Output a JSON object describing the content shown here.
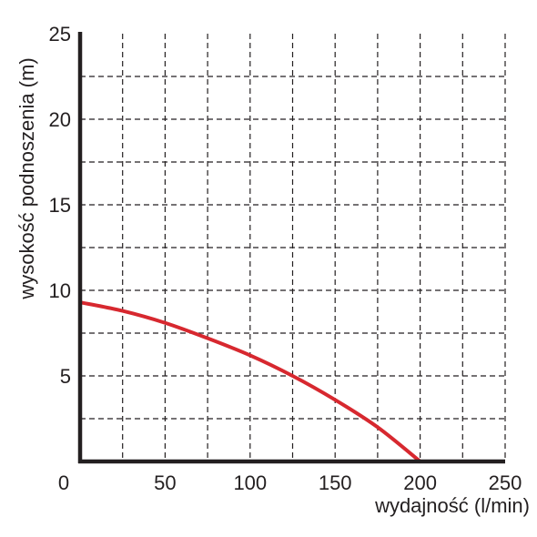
{
  "chart_data": {
    "type": "line",
    "title": "",
    "xlabel": "wydajność (l/min)",
    "ylabel": "wysokość podnoszenia (m)",
    "xlim": [
      0,
      250
    ],
    "ylim": [
      0,
      25
    ],
    "x_ticks": [
      {
        "value": 0,
        "label": "0"
      },
      {
        "value": 50,
        "label": "50"
      },
      {
        "value": 100,
        "label": "100"
      },
      {
        "value": 150,
        "label": "150"
      },
      {
        "value": 200,
        "label": "200"
      },
      {
        "value": 250,
        "label": "250"
      }
    ],
    "y_ticks": [
      {
        "value": 5,
        "label": "5"
      },
      {
        "value": 10,
        "label": "10"
      },
      {
        "value": 15,
        "label": "15"
      },
      {
        "value": 20,
        "label": "20"
      },
      {
        "value": 25,
        "label": "25"
      }
    ],
    "x_grid_step": 25,
    "y_grid_step": 2.5,
    "grid": true,
    "grid_style": "dashed",
    "series": [
      {
        "color": "#d7282f",
        "points": [
          {
            "x": 0,
            "y": 9.3
          },
          {
            "x": 25,
            "y": 8.8
          },
          {
            "x": 50,
            "y": 8.1
          },
          {
            "x": 75,
            "y": 7.2
          },
          {
            "x": 100,
            "y": 6.2
          },
          {
            "x": 125,
            "y": 5.0
          },
          {
            "x": 150,
            "y": 3.6
          },
          {
            "x": 175,
            "y": 2.0
          },
          {
            "x": 200,
            "y": 0
          }
        ]
      }
    ]
  }
}
